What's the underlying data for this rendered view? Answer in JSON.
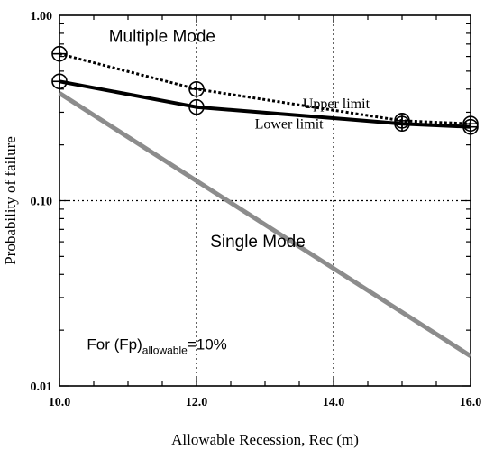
{
  "chart_data": {
    "type": "line",
    "xlabel": "Allowable Recession, Rec (m)",
    "ylabel": "Probability of failure",
    "xlim": [
      10.0,
      16.0
    ],
    "ylim": [
      0.01,
      1.0
    ],
    "y_scale": "log",
    "grid": "dotted major gridlines",
    "x_ticks": [
      10.0,
      12.0,
      14.0,
      16.0
    ],
    "x_tick_labels": [
      "10.0",
      "12.0",
      "14.0",
      "16.0"
    ],
    "y_ticks": [
      0.01,
      0.1,
      1.0
    ],
    "y_tick_labels": [
      "0.01",
      "0.10",
      "1.00"
    ],
    "series": [
      {
        "name": "Upper limit",
        "style": "dotted",
        "color": "#000000",
        "x": [
          10.0,
          12.0,
          15.0,
          16.0
        ],
        "y": [
          0.62,
          0.4,
          0.27,
          0.26
        ]
      },
      {
        "name": "Lower limit",
        "style": "solid",
        "color": "#000000",
        "x": [
          10.0,
          12.0,
          15.0,
          16.0
        ],
        "y": [
          0.44,
          0.32,
          0.26,
          0.25
        ]
      },
      {
        "name": "Single Mode",
        "style": "solid",
        "color": "#8c8c8c",
        "x": [
          10.0,
          16.0
        ],
        "y": [
          0.38,
          0.0145
        ]
      }
    ],
    "annotations": {
      "multiple_mode": "Multiple Mode",
      "upper_limit": "Upper limit",
      "lower_limit": "Lower limit",
      "single_mode": "Single Mode",
      "fp_prefix": "For (Fp)",
      "fp_subscript": "allowable",
      "fp_suffix": "=10%"
    }
  }
}
